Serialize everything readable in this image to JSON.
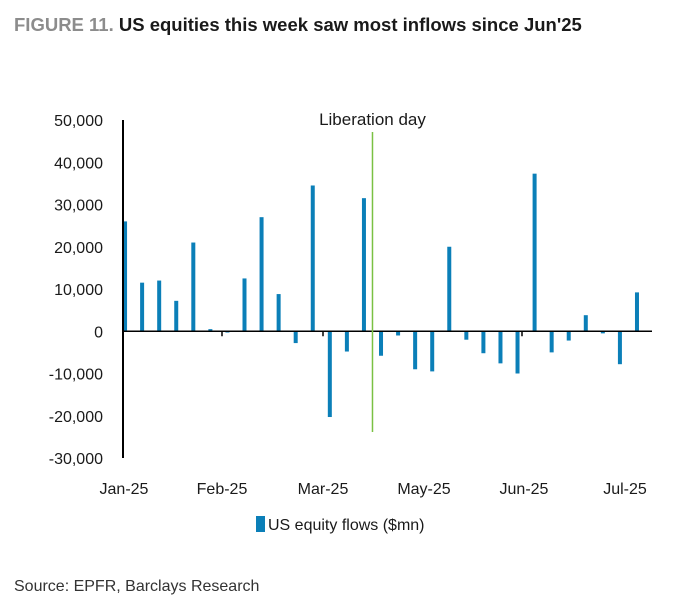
{
  "header": {
    "figure_label": "FIGURE 11.",
    "title": "US equities this week saw most inflows since Jun'25"
  },
  "footer": {
    "source": "Source: EPFR, Barclays Research"
  },
  "colors": {
    "bar": "#0b7fb8",
    "marker_line": "#7ac143",
    "axis": "#000000"
  },
  "chart_data": {
    "type": "bar",
    "title": "US equities this week saw most inflows since Jun'25",
    "xlabel": "",
    "ylabel": "",
    "ylim": [
      -30000,
      50000
    ],
    "yticks": [
      50000,
      40000,
      30000,
      20000,
      10000,
      0,
      -10000,
      -20000,
      -30000
    ],
    "ytick_labels": [
      "50,000",
      "40,000",
      "30,000",
      "20,000",
      "10,000",
      "0",
      "-10,000",
      "-20,000",
      "-30,000"
    ],
    "x_month_labels": [
      "Jan-25",
      "Feb-25",
      "Mar-25",
      "May-25",
      "Jun-25",
      "Jul-25"
    ],
    "grid": false,
    "legend": {
      "position": "bottom",
      "entries": [
        "US equity flows ($mn)"
      ]
    },
    "series": [
      {
        "name": "US equity flows ($mn)",
        "values": [
          26000,
          11500,
          12000,
          7200,
          21000,
          500,
          -300,
          12500,
          27000,
          8800,
          -2800,
          34500,
          -20300,
          -4800,
          31500,
          -5800,
          -1000,
          -9000,
          -9500,
          20000,
          -2000,
          -5200,
          -7600,
          -10000,
          37300,
          -5000,
          -2200,
          3800,
          -500,
          -7800,
          9200
        ]
      }
    ],
    "annotations": [
      {
        "label": "Liberation day",
        "after_bar_index": 14
      }
    ]
  }
}
